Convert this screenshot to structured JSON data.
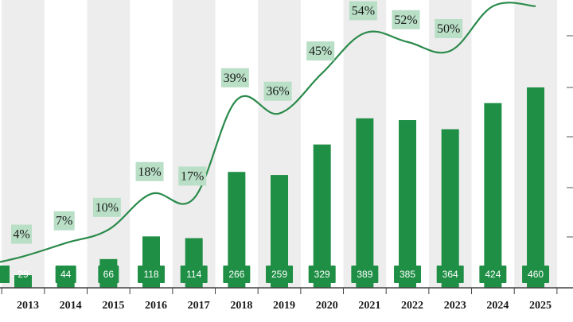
{
  "chart_data": {
    "type": "bar",
    "categories": [
      "2013",
      "2014",
      "2015",
      "2016",
      "2017",
      "2018",
      "2019",
      "2020",
      "2021",
      "2022",
      "2023",
      "2024",
      "2025"
    ],
    "series": [
      {
        "type": "bar",
        "values": [
          29,
          44,
          66,
          118,
          114,
          266,
          259,
          329,
          389,
          385,
          364,
          424,
          460
        ]
      },
      {
        "type": "line",
        "unit": "%",
        "values": [
          4,
          7,
          10,
          18,
          17,
          39,
          36,
          45,
          54,
          52,
          50,
          60,
          60
        ]
      }
    ],
    "partially_visible": {
      "bar_value_first_year_cut_off": true
    },
    "colors": {
      "bar": "#1f8f45",
      "line": "#2a8a4a",
      "label_box_bar": "#1f8f45",
      "label_box_line": "#b9dfc6",
      "stripe": "#ededed"
    },
    "grid": false,
    "legend": "none"
  }
}
